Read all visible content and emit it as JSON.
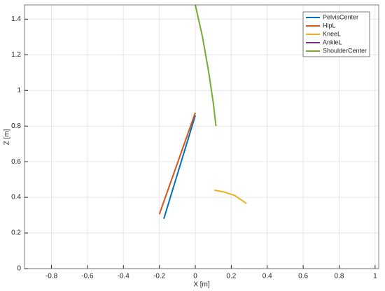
{
  "chart_data": {
    "type": "line",
    "xlabel": "X [m]",
    "ylabel": "Z [m]",
    "xlim": [
      -0.95,
      1.02
    ],
    "ylim": [
      0,
      1.48
    ],
    "xticks": [
      -0.8,
      -0.6,
      -0.4,
      -0.2,
      0,
      0.2,
      0.4,
      0.6,
      0.8,
      1
    ],
    "yticks": [
      0,
      0.2,
      0.4,
      0.6,
      0.8,
      1,
      1.2,
      1.4
    ],
    "grid": true,
    "legend": "top-right",
    "series": [
      {
        "name": "PelvisCenter",
        "color": "#0072bd",
        "x": [
          -0.175,
          0
        ],
        "values": [
          0.28,
          0.86
        ]
      },
      {
        "name": "HipL",
        "color": "#d95319",
        "x": [
          -0.2,
          0
        ],
        "values": [
          0.305,
          0.875
        ]
      },
      {
        "name": "KneeL",
        "color": "#edb120",
        "x": [
          0.105,
          0.16,
          0.22,
          0.285
        ],
        "values": [
          0.44,
          0.43,
          0.41,
          0.365
        ]
      },
      {
        "name": "AnkleL",
        "color": "#7e2f8e",
        "x": [],
        "values": []
      },
      {
        "name": "ShoulderCenter",
        "color": "#77ac30",
        "x": [
          0,
          0.04,
          0.075,
          0.1,
          0.115
        ],
        "values": [
          1.48,
          1.3,
          1.1,
          0.93,
          0.8
        ]
      }
    ]
  }
}
